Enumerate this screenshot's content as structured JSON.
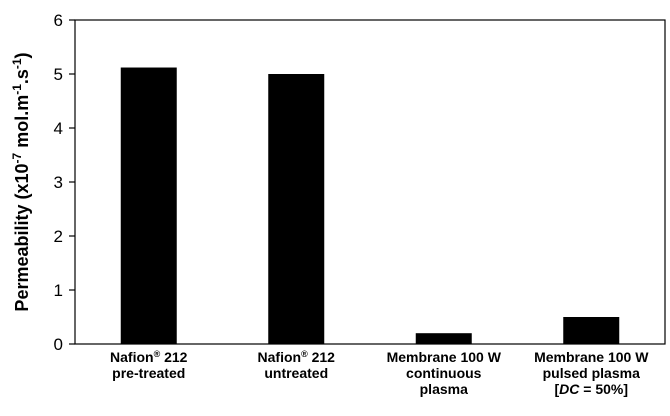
{
  "chart_data": {
    "type": "bar",
    "categories": [
      [
        "Nafion® 212",
        "pre-treated"
      ],
      [
        "Nafion® 212",
        "untreated"
      ],
      [
        "Membrane 100 W",
        "continuous",
        "plasma"
      ],
      [
        "Membrane 100 W",
        "pulsed plasma",
        "[DC = 50%]"
      ]
    ],
    "values": [
      5.12,
      5.0,
      0.2,
      0.5
    ],
    "ylabel": "Permeability (x10-7 mol.m-1.s-1)",
    "ylabel_parts": {
      "main": "Permeability (x10",
      "exp1": "-7",
      "mid": " mol.m",
      "exp2": "-1",
      "mid2": ".s",
      "exp3": "-1",
      "end": ")"
    },
    "ylim": [
      0,
      6
    ],
    "yticks": [
      0,
      1,
      2,
      3,
      4,
      5,
      6
    ],
    "grid": false,
    "bar_color": "#000000"
  }
}
